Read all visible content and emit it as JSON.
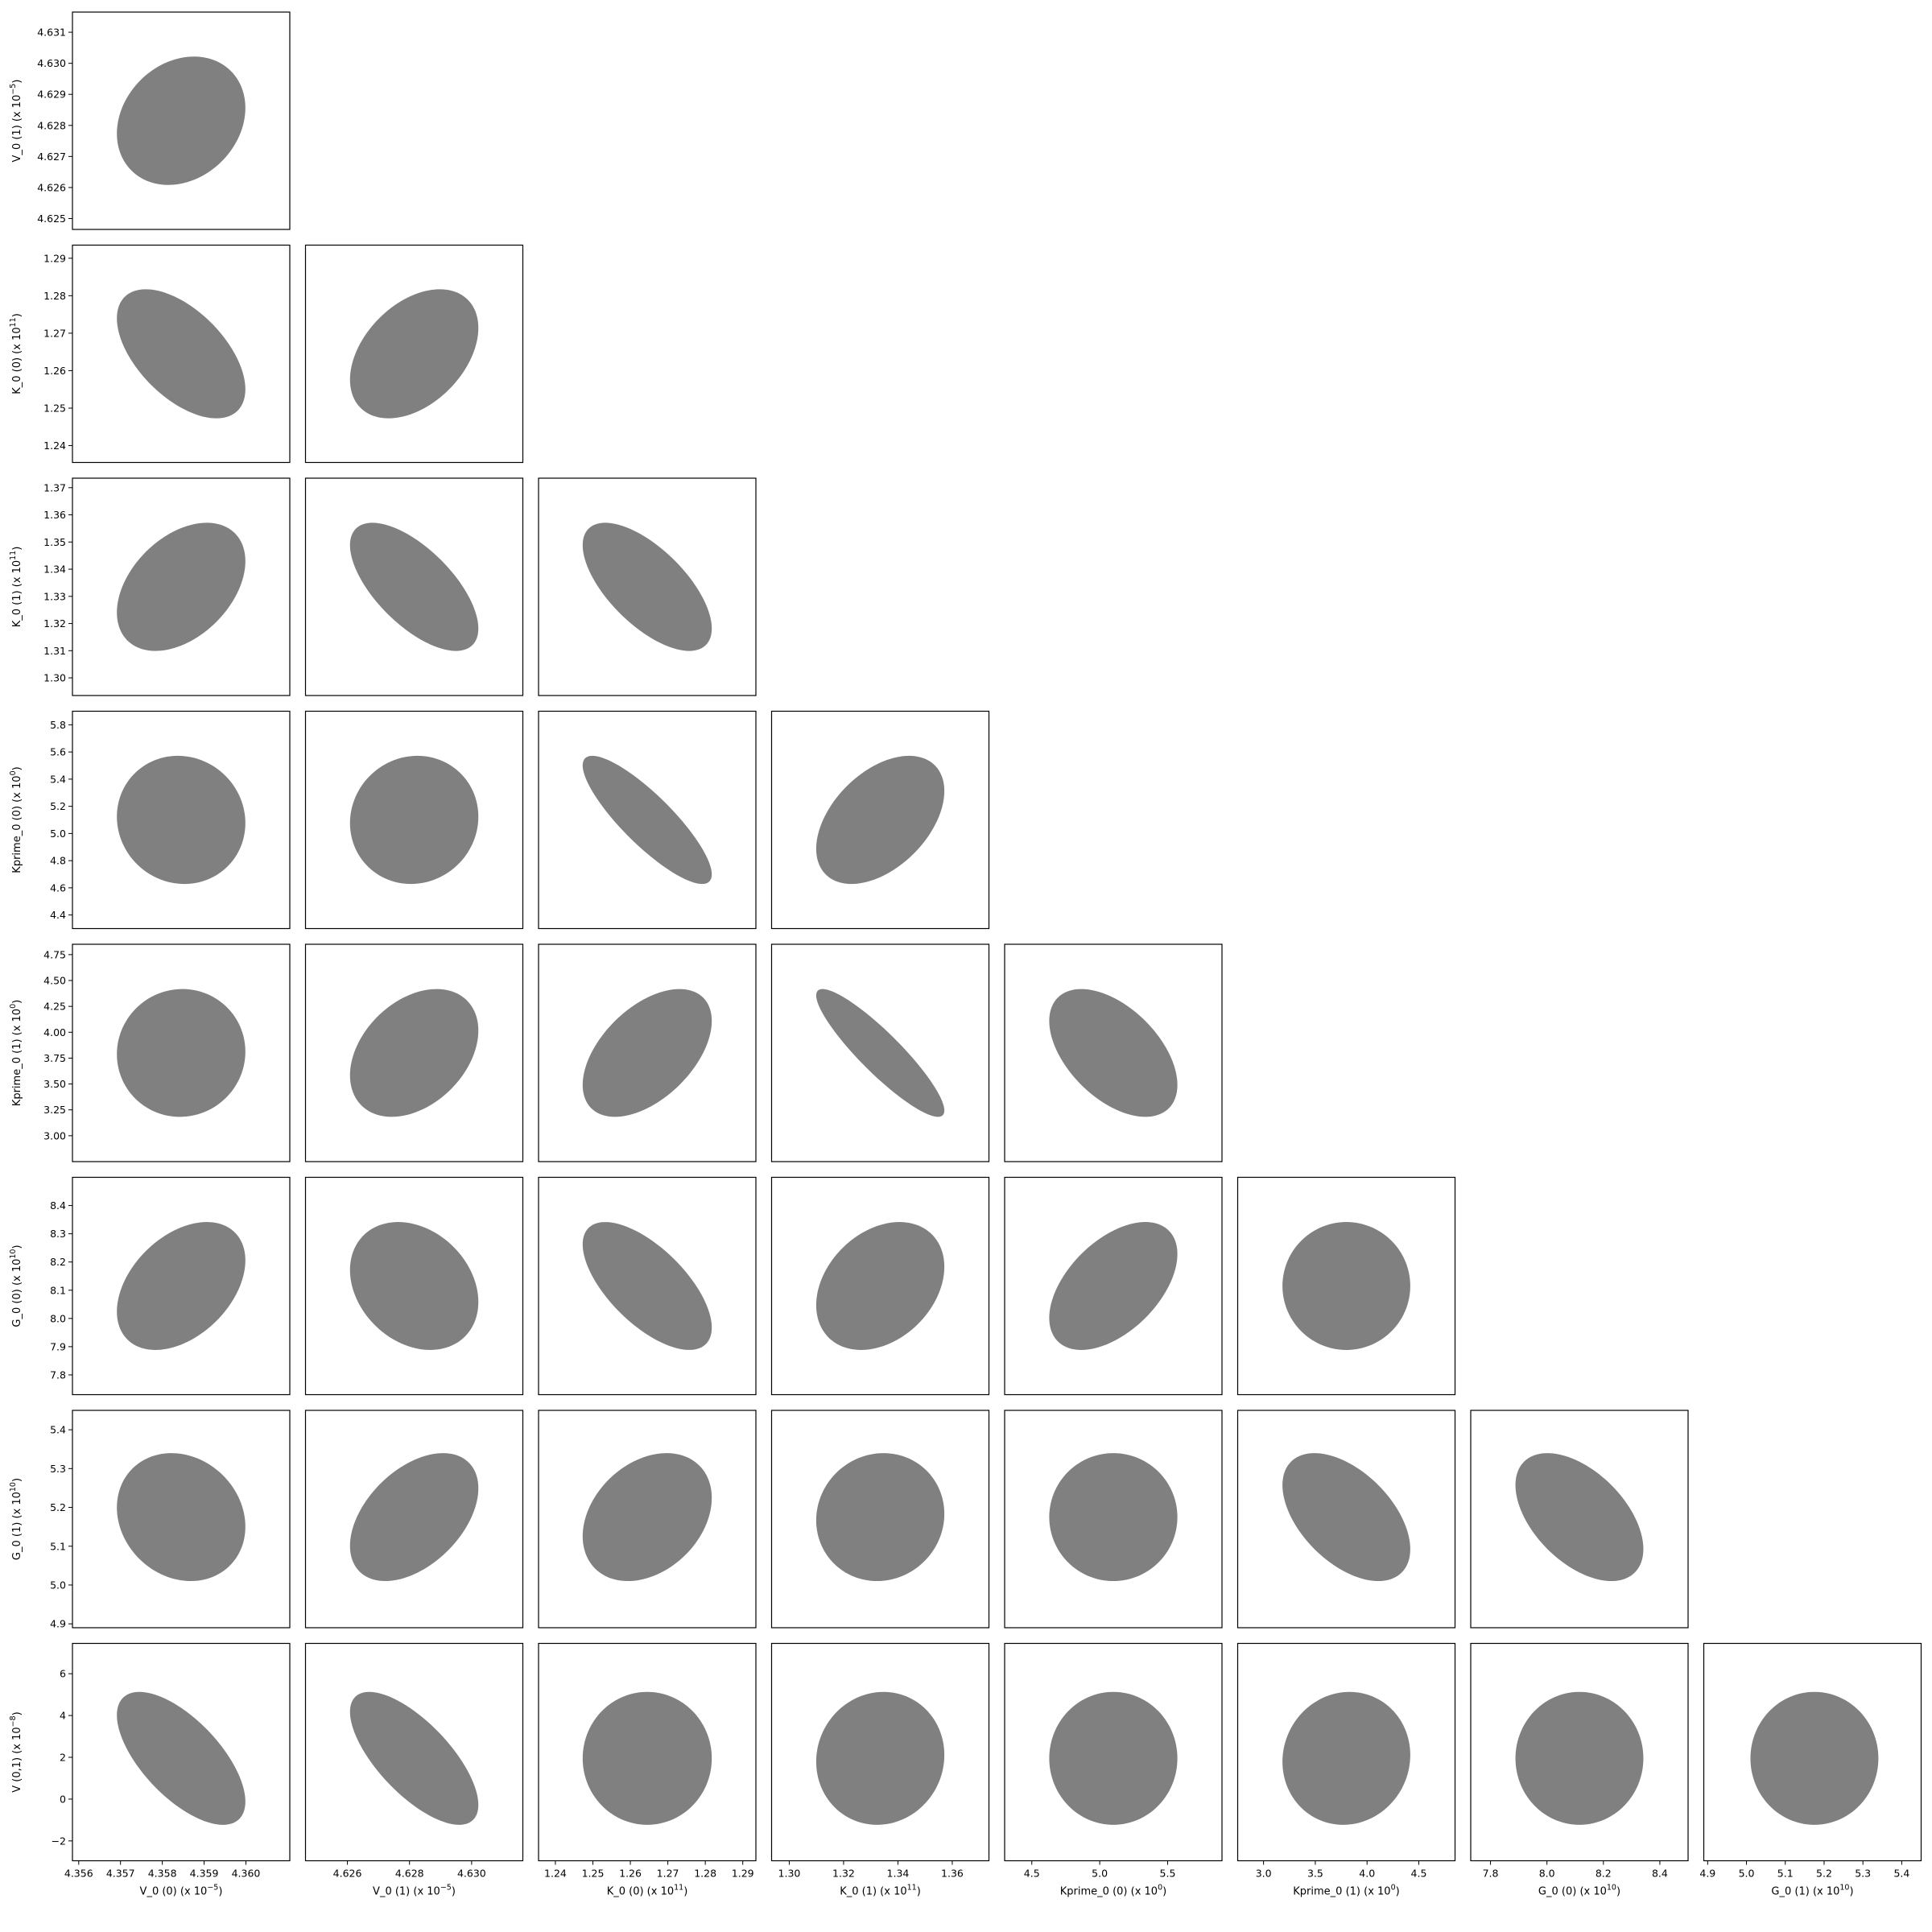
{
  "chart_data": {
    "type": "corner-ellipse",
    "grid": false,
    "fill_color": "#808080",
    "variables": [
      {
        "id": "V_0 (0)",
        "label": "V_0 (0) (x 10",
        "exp": "−5",
        "range": [
          4.35585,
          4.36105
        ],
        "ticks": [
          4.356,
          4.357,
          4.358,
          4.359,
          4.36
        ],
        "tick_labels": [
          "4.356",
          "4.357",
          "4.358",
          "4.359",
          "4.360"
        ],
        "center": 4.35845,
        "sigma": 0.00058
      },
      {
        "id": "V_0 (1)",
        "label": "V_0 (1) (x 10",
        "exp": "−5",
        "range": [
          4.62465,
          4.63165
        ],
        "ticks": [
          4.626,
          4.628,
          4.63
        ],
        "tick_labels": [
          "4.626",
          "4.628",
          "4.630"
        ],
        "tick_ticks_y": [
          4.625,
          4.626,
          4.627,
          4.628,
          4.629,
          4.63,
          4.631
        ],
        "tick_labels_y": [
          "4.625",
          "4.626",
          "4.627",
          "4.628",
          "4.629",
          "4.630",
          "4.631"
        ],
        "center": 4.62815,
        "sigma": 0.00078
      },
      {
        "id": "K_0 (0)",
        "label": "K_0 (0) (x 10",
        "exp": "11",
        "range": [
          1.2355,
          1.2935
        ],
        "ticks": [
          1.24,
          1.25,
          1.26,
          1.27,
          1.28,
          1.29
        ],
        "tick_labels": [
          "1.24",
          "1.25",
          "1.26",
          "1.27",
          "1.28",
          "1.29"
        ],
        "center": 1.2645,
        "sigma": 0.0065
      },
      {
        "id": "K_0 (1)",
        "label": "K_0 (1) (x 10",
        "exp": "11",
        "range": [
          1.2935,
          1.3735
        ],
        "ticks": [
          1.3,
          1.32,
          1.34,
          1.36
        ],
        "tick_labels": [
          "1.30",
          "1.32",
          "1.34",
          "1.36"
        ],
        "tick_ticks_y": [
          1.3,
          1.31,
          1.32,
          1.33,
          1.34,
          1.35,
          1.36,
          1.37
        ],
        "tick_labels_y": [
          "1.30",
          "1.31",
          "1.32",
          "1.33",
          "1.34",
          "1.35",
          "1.36",
          "1.37"
        ],
        "center": 1.3335,
        "sigma": 0.0089
      },
      {
        "id": "Kprime_0 (0)",
        "label": "Kprime_0 (0) (x 10",
        "exp": "0",
        "range": [
          4.3,
          5.9
        ],
        "ticks": [
          4.5,
          5.0,
          5.5
        ],
        "tick_labels": [
          "4.5",
          "5.0",
          "5.5"
        ],
        "tick_ticks_y": [
          4.4,
          4.6,
          4.8,
          5.0,
          5.2,
          5.4,
          5.6,
          5.8
        ],
        "tick_labels_y": [
          "4.4",
          "4.6",
          "4.8",
          "5.0",
          "5.2",
          "5.4",
          "5.6",
          "5.8"
        ],
        "center": 5.1,
        "sigma": 0.178
      },
      {
        "id": "Kprime_0 (1)",
        "label": "Kprime_0 (1) (x 10",
        "exp": "0",
        "range": [
          2.75,
          4.85
        ],
        "ticks": [
          3.0,
          3.5,
          4.0,
          4.5
        ],
        "tick_labels": [
          "3.0",
          "3.5",
          "4.0",
          "4.5"
        ],
        "tick_ticks_y": [
          3.0,
          3.25,
          3.5,
          3.75,
          4.0,
          4.25,
          4.5,
          4.75
        ],
        "tick_labels_y": [
          "3.00",
          "3.25",
          "3.50",
          "3.75",
          "4.00",
          "4.25",
          "4.50",
          "4.75"
        ],
        "center": 3.8,
        "sigma": 0.233
      },
      {
        "id": "G_0 (0)",
        "label": "G_0 (0) (x 10",
        "exp": "10",
        "range": [
          7.73,
          8.5
        ],
        "ticks": [
          7.8,
          8.0,
          8.2,
          8.4
        ],
        "tick_labels": [
          "7.8",
          "8.0",
          "8.2",
          "8.4"
        ],
        "tick_ticks_y": [
          7.8,
          7.9,
          8.0,
          8.1,
          8.2,
          8.3,
          8.4
        ],
        "tick_labels_y": [
          "7.8",
          "7.9",
          "8.0",
          "8.1",
          "8.2",
          "8.3",
          "8.4"
        ],
        "center": 8.115,
        "sigma": 0.0855
      },
      {
        "id": "G_0 (1)",
        "label": "G_0 (1) (x 10",
        "exp": "10",
        "range": [
          4.89,
          5.45
        ],
        "ticks": [
          4.9,
          5.0,
          5.1,
          5.2,
          5.3,
          5.4
        ],
        "tick_labels": [
          "4.9",
          "5.0",
          "5.1",
          "5.2",
          "5.3",
          "5.4"
        ],
        "center": 5.175,
        "sigma": 0.0622
      },
      {
        "id": "V (0,1)",
        "label": "V (0,1) (x 10",
        "exp": "−8",
        "range": [
          -2.95,
          7.45
        ],
        "ticks": [
          -2,
          0,
          2,
          4,
          6
        ],
        "tick_labels": [
          "−2",
          "0",
          "2",
          "4",
          "6"
        ],
        "center": 1.95,
        "sigma": 1.2
      }
    ],
    "correlations": [
      {
        "x": "V_0 (0)",
        "y": "V_0 (1)",
        "rho": 0.2
      },
      {
        "x": "V_0 (0)",
        "y": "K_0 (0)",
        "rho": -0.55
      },
      {
        "x": "V_0 (1)",
        "y": "K_0 (0)",
        "rho": 0.4
      },
      {
        "x": "V_0 (0)",
        "y": "K_0 (1)",
        "rho": 0.4
      },
      {
        "x": "V_0 (1)",
        "y": "K_0 (1)",
        "rho": -0.65
      },
      {
        "x": "K_0 (0)",
        "y": "K_0 (1)",
        "rho": -0.65
      },
      {
        "x": "V_0 (0)",
        "y": "Kprime_0 (0)",
        "rho": -0.05
      },
      {
        "x": "V_0 (1)",
        "y": "Kprime_0 (0)",
        "rho": 0.05
      },
      {
        "x": "K_0 (0)",
        "y": "Kprime_0 (0)",
        "rho": -0.85
      },
      {
        "x": "K_0 (1)",
        "y": "Kprime_0 (0)",
        "rho": 0.45
      },
      {
        "x": "V_0 (0)",
        "y": "Kprime_0 (1)",
        "rho": 0.02
      },
      {
        "x": "V_0 (1)",
        "y": "Kprime_0 (1)",
        "rho": 0.35
      },
      {
        "x": "K_0 (0)",
        "y": "Kprime_0 (1)",
        "rho": 0.5
      },
      {
        "x": "K_0 (1)",
        "y": "Kprime_0 (1)",
        "rho": -0.9
      },
      {
        "x": "Kprime_0 (0)",
        "y": "Kprime_0 (1)",
        "rho": -0.5
      },
      {
        "x": "V_0 (0)",
        "y": "G_0 (0)",
        "rho": 0.4
      },
      {
        "x": "V_0 (1)",
        "y": "G_0 (0)",
        "rho": -0.25
      },
      {
        "x": "K_0 (0)",
        "y": "G_0 (0)",
        "rho": -0.65
      },
      {
        "x": "K_0 (1)",
        "y": "G_0 (0)",
        "rho": 0.3
      },
      {
        "x": "Kprime_0 (0)",
        "y": "G_0 (0)",
        "rho": 0.5
      },
      {
        "x": "Kprime_0 (1)",
        "y": "G_0 (0)",
        "rho": 0.0
      },
      {
        "x": "V_0 (0)",
        "y": "G_0 (1)",
        "rho": -0.15
      },
      {
        "x": "V_0 (1)",
        "y": "G_0 (1)",
        "rho": 0.45
      },
      {
        "x": "K_0 (0)",
        "y": "G_0 (1)",
        "rho": 0.3
      },
      {
        "x": "K_0 (1)",
        "y": "G_0 (1)",
        "rho": 0.05
      },
      {
        "x": "Kprime_0 (0)",
        "y": "G_0 (1)",
        "rho": 0.0
      },
      {
        "x": "Kprime_0 (1)",
        "y": "G_0 (1)",
        "rho": -0.5
      },
      {
        "x": "G_0 (0)",
        "y": "G_0 (1)",
        "rho": -0.5
      },
      {
        "x": "V_0 (0)",
        "y": "V (0,1)",
        "rho": -0.65
      },
      {
        "x": "V_0 (1)",
        "y": "V (0,1)",
        "rho": -0.7
      },
      {
        "x": "K_0 (0)",
        "y": "V (0,1)",
        "rho": 0.0
      },
      {
        "x": "K_0 (1)",
        "y": "V (0,1)",
        "rho": 0.05
      },
      {
        "x": "Kprime_0 (0)",
        "y": "V (0,1)",
        "rho": 0.0
      },
      {
        "x": "Kprime_0 (1)",
        "y": "V (0,1)",
        "rho": 0.05
      },
      {
        "x": "G_0 (0)",
        "y": "V (0,1)",
        "rho": 0.0
      },
      {
        "x": "G_0 (1)",
        "y": "V (0,1)",
        "rho": 0.0
      }
    ]
  }
}
